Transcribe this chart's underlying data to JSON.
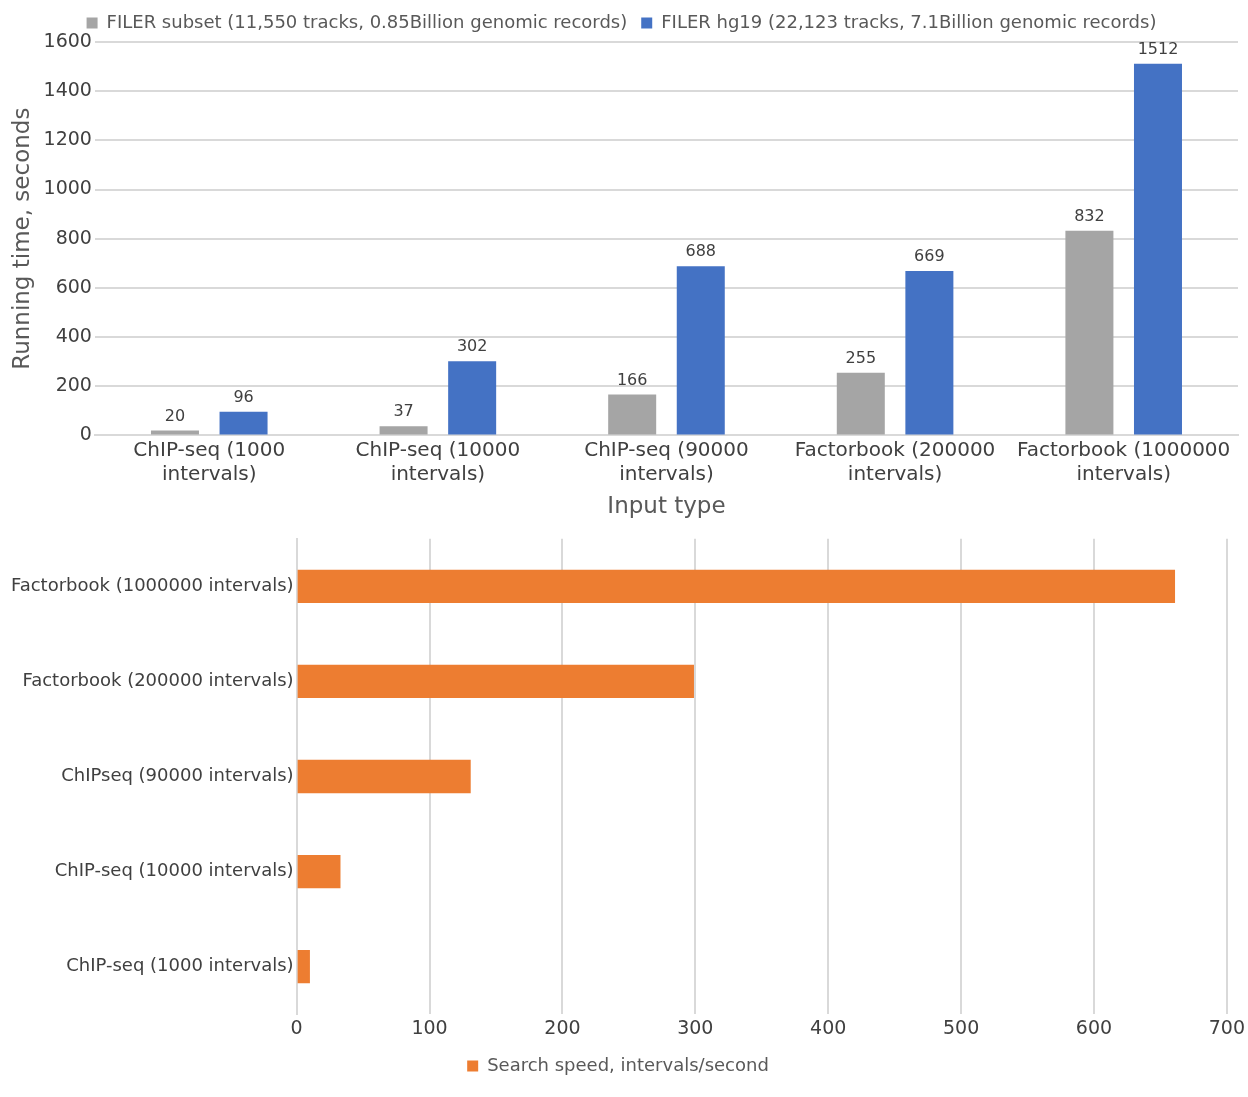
{
  "chart_data": [
    {
      "type": "bar",
      "xlabel": "Input type",
      "ylabel": "Running time, seconds",
      "categories": [
        "ChIP-seq (1000 intervals)",
        "ChIP-seq (10000 intervals)",
        "ChIP-seq (90000 intervals)",
        "Factorbook (200000 intervals)",
        "Factorbook (1000000 intervals)"
      ],
      "series": [
        {
          "name": "FILER subset (11,550 tracks, 0.85Billion genomic records)",
          "color": "#a5a5a5",
          "values": [
            20,
            37,
            166,
            255,
            832
          ]
        },
        {
          "name": "FILER hg19 (22,123 tracks, 7.1Billion genomic records)",
          "color": "#4472c4",
          "values": [
            96,
            302,
            688,
            669,
            1512
          ]
        }
      ],
      "ylim": [
        0,
        1600
      ],
      "yticks": [
        0,
        200,
        400,
        600,
        800,
        1000,
        1200,
        1400,
        1600
      ],
      "grid": "y",
      "legend": "top",
      "data_labels": true
    },
    {
      "type": "bar",
      "orientation": "horizontal",
      "categories": [
        "Factorbook (1000000 intervals)",
        "Factorbook (200000 intervals)",
        "ChIPseq (90000 intervals)",
        "ChIP-seq (10000 intervals)",
        "ChIP-seq (1000 intervals)"
      ],
      "series": [
        {
          "name": "Search speed, intervals/second",
          "color": "#ed7d31",
          "values": [
            661,
            299,
            131,
            33,
            10
          ]
        }
      ],
      "xlim": [
        0,
        700
      ],
      "xticks": [
        0,
        100,
        200,
        300,
        400,
        500,
        600,
        700
      ],
      "grid": "x",
      "legend": "bottom"
    }
  ]
}
